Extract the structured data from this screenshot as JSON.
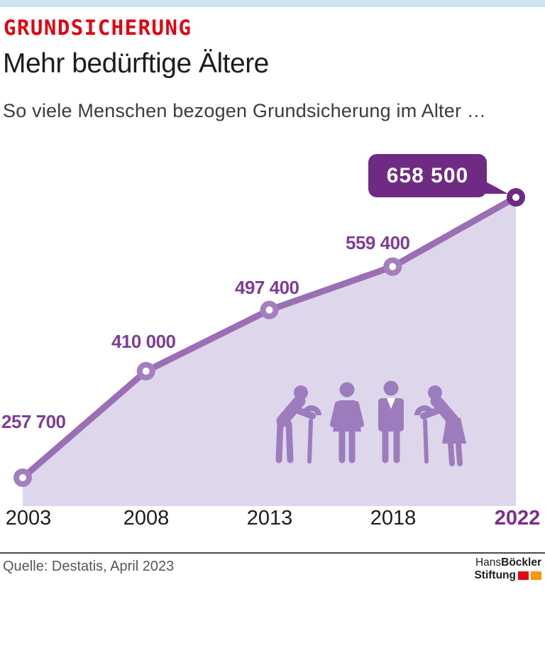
{
  "header": {
    "kicker": "GRUNDSICHERUNG",
    "title": "Mehr bedürftige Ältere",
    "subtitle": "So viele Menschen bezogen Grundsicherung im Alter …"
  },
  "chart_data": {
    "type": "area",
    "title": "Mehr bedürftige Ältere",
    "subtitle": "So viele Menschen bezogen Grundsicherung im Alter …",
    "categories": [
      "2003",
      "2008",
      "2013",
      "2018",
      "2022"
    ],
    "values": [
      257700,
      410000,
      497400,
      559400,
      658500
    ],
    "value_labels": [
      "257 700",
      "410 000",
      "497 400",
      "559 400",
      "658 500"
    ],
    "highlight_index": 4,
    "highlight_category": "2022",
    "legend": "none",
    "grid": "off",
    "xlabel": "",
    "ylabel": "",
    "ylim": [
      257700,
      658500
    ],
    "colors": {
      "line": "#9a6fb4",
      "area_fill": "#ded7eb",
      "accent_dark": "#6f2b84",
      "value_label": "#7e3d99",
      "pictogram": "#9d7cbe",
      "kicker_red": "#e3000f",
      "topbar_blue": "#cde3ef",
      "highlight_year": "#7c2e8c"
    },
    "pictograms": [
      "elderly-man-with-cane",
      "woman",
      "man-in-suit",
      "elderly-woman-with-cane"
    ]
  },
  "footer": {
    "source": "Quelle: Destatis, April 2023",
    "logo": {
      "line1_regular": "Hans ",
      "line1_bold": "Böckler",
      "line2_bold": "Stiftung",
      "square_colors": [
        "#e30613",
        "#f59a00"
      ]
    }
  }
}
